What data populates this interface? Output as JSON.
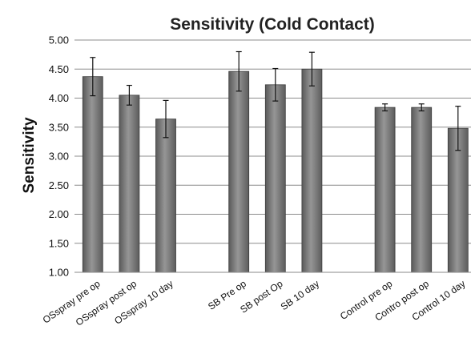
{
  "chart_data": {
    "type": "bar",
    "title": "Sensitivity (Cold Contact)",
    "xlabel": "",
    "ylabel": "Sensitivity",
    "ylim": [
      1.0,
      5.0
    ],
    "yticks": [
      "1.00",
      "1.50",
      "2.00",
      "2.50",
      "3.00",
      "3.50",
      "4.00",
      "4.50",
      "5.00"
    ],
    "grid": true,
    "legend": "none",
    "categories": [
      "OSspray pre op",
      "OSspray post op",
      "OSspray 10 day",
      "SB Pre op",
      "SB post Op",
      "SB 10 day",
      "Control pre op",
      "Contro post op",
      "Control 10 day"
    ],
    "groups": [
      3,
      3,
      3
    ],
    "values": [
      4.37,
      4.05,
      3.64,
      4.46,
      4.23,
      4.5,
      3.84,
      3.84,
      3.48
    ],
    "error": [
      0.33,
      0.17,
      0.32,
      0.34,
      0.28,
      0.29,
      0.06,
      0.06,
      0.38
    ],
    "bar_color": "#7f7f7f",
    "bar_edge_color": "#3d3d3d"
  }
}
